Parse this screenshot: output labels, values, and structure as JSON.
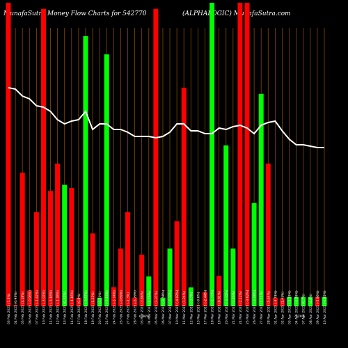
{
  "chart_data": {
    "type": "bar",
    "title_left": "MunafaSutra  Money Flow  Charts for 542770",
    "title_right": "(ALPHALOGIC) MunafaSutra.com",
    "categories": [
      "03 Feb 2025 (7.3%)",
      "04 Feb 2025 (0.93%)",
      "05 Feb 2025 (3.18%)",
      "06 Feb 2025 (-0.96%)",
      "07 Feb 2025 (-1.42%)",
      "10 Feb 2025 (-3.92%)",
      "11 Feb 2025 (-3.16%)",
      "12 Feb 2025 (-1.38%)",
      "13 Feb 2025 (0.52%)",
      "14 Feb 2025 (-4.16%)",
      "17 Feb 2025 (0.8%)",
      "18 Feb 2025 (-3.67%)",
      "19 Feb 2025 (1.22%)",
      "20 Feb 2025 (4.51%)",
      "21 Feb 2025 (-2.15%)",
      "24 Feb 2025 (-3.74%)",
      "25 Feb 2025 (-0.69%)",
      "27 Feb 2025 (-1.3%)",
      "28 Feb 2025 (-5.29%)",
      "03 Mar 2025 (3.86%)",
      "04 Mar 2025 (0.76%)",
      "05 Mar 2025 (3.37%)",
      "06 Mar 2025 (-0.58%)",
      "07 Mar 2025 (-0.32%)",
      "10 Mar 2025 (-4.92%)",
      "11 Mar 2025 (1.24%)",
      "12 Mar 2025 (-3.7%)",
      "13 Mar 2025 (-0.6%)",
      "17 Mar 2025 (-2.44%)",
      "18 Mar 2025 (-1.77%)",
      "19 Mar 2025 (6.81%)",
      "20 Mar 2025 (-3.35%)",
      "21 Mar 2025 (1.45%)",
      "24 Mar 2025 (2.12%)",
      "25 Mar 2025 (-3.62%)",
      "26 Mar 2025 (-2.06%)",
      "27 Mar 2025 (1.11%)",
      "28 Mar 2025 (0.44%)",
      "01 Apr 2025 (-4.73%)",
      "02 Apr 2025 (1.41%)",
      "03 Apr 2025 (-5.29%)",
      "04 Apr 2025 (-0.99%)",
      "07 Apr 2025 (0.7%)",
      "08 Apr 2025 (4.8%)",
      "09 Apr 2025 (-2.96%)",
      "10 Apr 2025 (-0.85%)"
    ],
    "flows": [
      "red",
      "red",
      "red",
      "red",
      "red",
      "red",
      "red",
      "red",
      "green",
      "red",
      "red",
      "green",
      "red",
      "green",
      "green",
      "red",
      "red",
      "red",
      "red",
      "red",
      "green",
      "red",
      "green",
      "green",
      "red",
      "red",
      "green",
      "red",
      "red",
      "green",
      "red",
      "green",
      "green",
      "red",
      "red",
      "green",
      "green",
      "red",
      "red",
      "red",
      "green",
      "green",
      "green",
      "green",
      "red",
      "green"
    ],
    "bar_heights": [
      1.0,
      0.003,
      0.44,
      0.052,
      0.31,
      0.98,
      0.38,
      0.47,
      0.4,
      0.39,
      0.028,
      0.89,
      0.24,
      0.028,
      0.83,
      0.063,
      0.19,
      0.31,
      0.028,
      0.17,
      0.098,
      0.98,
      0.028,
      0.19,
      0.28,
      0.72,
      0.062,
      0.003,
      0.047,
      1.0,
      0.1,
      0.53,
      0.19,
      1.0,
      1.0,
      0.34,
      0.7,
      0.47,
      0.028,
      0.026,
      0.03,
      0.03,
      0.03,
      0.03,
      0.03,
      0.03
    ],
    "price_line": [
      0.785,
      0.78,
      0.755,
      0.745,
      0.72,
      0.715,
      0.7,
      0.67,
      0.655,
      0.665,
      0.67,
      0.7,
      0.635,
      0.655,
      0.655,
      0.635,
      0.635,
      0.625,
      0.61,
      0.61,
      0.61,
      0.605,
      0.61,
      0.625,
      0.655,
      0.655,
      0.63,
      0.63,
      0.62,
      0.62,
      0.64,
      0.635,
      0.645,
      0.65,
      0.64,
      0.62,
      0.65,
      0.66,
      0.665,
      0.63,
      0.6,
      0.58,
      0.58,
      0.575,
      0.57,
      0.57
    ],
    "secondary_label": "6.36%",
    "secondary_label_2": "-5.29%",
    "ylim": [
      0,
      1
    ]
  }
}
